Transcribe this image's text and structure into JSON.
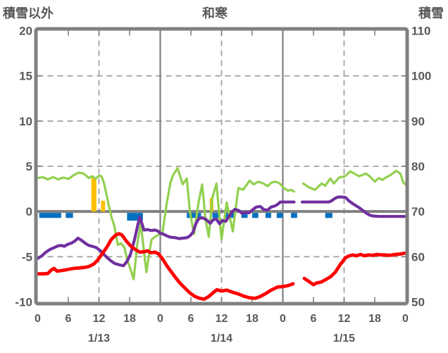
{
  "header": {
    "left_axis_title": "積雪以外",
    "chart_title": "和寒",
    "right_axis_title": "積雪"
  },
  "chart_data": {
    "type": "line",
    "title": "和寒",
    "x_axis": {
      "span_hours": 72,
      "tick_every_hours": 6,
      "hour_tick_labels": [
        "0",
        "6",
        "12",
        "18",
        "0",
        "6",
        "12",
        "18",
        "0",
        "6",
        "12",
        "18",
        "0"
      ],
      "date_labels": [
        {
          "text": "1/13",
          "at_hour": 12
        },
        {
          "text": "1/14",
          "at_hour": 36
        },
        {
          "text": "1/15",
          "at_hour": 60
        }
      ],
      "solid_gridlines_at_hours": [
        24,
        48
      ],
      "dashed_gridlines_at_hours": [
        12,
        36,
        60
      ]
    },
    "left_axis": {
      "title": "積雪以外",
      "min": -10,
      "max": 20,
      "tick_step": 5,
      "tick_labels": [
        "20",
        "15",
        "10",
        "5",
        "0",
        "-5",
        "-10"
      ],
      "dashed_gridlines_at": [
        15,
        10,
        5,
        -5
      ],
      "zero_line": true
    },
    "right_axis": {
      "title": "積雪",
      "min": 50,
      "max": 110,
      "tick_step": 10,
      "tick_labels": [
        "110",
        "100",
        "90",
        "80",
        "70",
        "60",
        "50"
      ]
    },
    "series": [
      {
        "name": "green-line",
        "color": "#92D050",
        "axis": "right",
        "points": [
          [
            0,
            3.7
          ],
          [
            1,
            3.8
          ],
          [
            2,
            3.55
          ],
          [
            3,
            3.8
          ],
          [
            4,
            3.55
          ],
          [
            5,
            3.75
          ],
          [
            6,
            3.6
          ],
          [
            7,
            4.0
          ],
          [
            8,
            4.3
          ],
          [
            9,
            4.2
          ],
          [
            10,
            3.7
          ],
          [
            10.7,
            3.9
          ],
          [
            11.3,
            3.6
          ],
          [
            12,
            3.95
          ],
          [
            12.5,
            3.9
          ],
          [
            13,
            3.1
          ],
          [
            13.5,
            1.8
          ],
          [
            14,
            0.5
          ],
          [
            14.5,
            -0.7
          ],
          [
            15,
            -1.6
          ],
          [
            15.7,
            -3.7
          ],
          [
            16.3,
            -3.5
          ],
          [
            17,
            -4.0
          ],
          [
            17.5,
            -5.3
          ],
          [
            18.3,
            -6.6
          ],
          [
            18.8,
            -7.5
          ],
          [
            19.5,
            -3.6
          ],
          [
            20.2,
            -1.3
          ],
          [
            20.8,
            -4.4
          ],
          [
            21.3,
            -6.7
          ],
          [
            21.9,
            -4.4
          ],
          [
            22.3,
            -3.1
          ],
          [
            23,
            -2.8
          ],
          [
            23.8,
            -2.5
          ],
          [
            24.4,
            -2.5
          ],
          [
            25.3,
            1.0
          ],
          [
            26,
            3.2
          ],
          [
            26.5,
            4.0
          ],
          [
            27.4,
            4.8
          ],
          [
            28.4,
            3.0
          ],
          [
            29.2,
            3.65
          ],
          [
            29.8,
            0.0
          ],
          [
            30.6,
            -2.5
          ],
          [
            31.5,
            1.0
          ],
          [
            32.2,
            3.0
          ],
          [
            32.9,
            -1.0
          ],
          [
            33.5,
            -2.8
          ],
          [
            34.2,
            1.5
          ],
          [
            35.0,
            3.1
          ],
          [
            36.0,
            -3.1
          ],
          [
            37.0,
            1.0
          ],
          [
            38.2,
            -2.2
          ],
          [
            39.3,
            2.6
          ],
          [
            40.2,
            2.4
          ],
          [
            41.5,
            3.4
          ],
          [
            42.3,
            3.0
          ],
          [
            43.2,
            3.3
          ],
          [
            44.2,
            3.1
          ],
          [
            45,
            2.8
          ],
          [
            45.8,
            3.2
          ],
          [
            46.6,
            3.3
          ],
          [
            47.4,
            3.1
          ],
          [
            48.2,
            2.6
          ],
          [
            49,
            2.3
          ],
          [
            49.6,
            2.4
          ],
          [
            50.2,
            2.2
          ],
          null,
          [
            52,
            3.1
          ],
          [
            53,
            2.7
          ],
          [
            54.3,
            2.4
          ],
          [
            55.6,
            3.1
          ],
          [
            56.3,
            2.85
          ],
          [
            57.3,
            3.65
          ],
          [
            58,
            3.1
          ],
          [
            59,
            3.75
          ],
          [
            60.2,
            3.9
          ],
          [
            61.2,
            4.45
          ],
          [
            62,
            4.2
          ],
          [
            62.9,
            3.9
          ],
          [
            64.3,
            4.2
          ],
          [
            65.2,
            3.8
          ],
          [
            66,
            3.3
          ],
          [
            66.8,
            3.7
          ],
          [
            67.5,
            3.5
          ],
          [
            68.3,
            3.8
          ],
          [
            69,
            4.0
          ],
          [
            70.2,
            4.5
          ],
          [
            71,
            4.2
          ],
          [
            71.6,
            3.2
          ],
          [
            72,
            3.0
          ]
        ]
      },
      {
        "name": "purple-line",
        "color": "#7030A0",
        "axis": "left",
        "points": [
          [
            0,
            -5.2
          ],
          [
            0.8,
            -4.9
          ],
          [
            1.6,
            -4.5
          ],
          [
            2.4,
            -4.2
          ],
          [
            3.2,
            -4.0
          ],
          [
            4,
            -3.8
          ],
          [
            4.6,
            -3.75
          ],
          [
            5.2,
            -3.85
          ],
          [
            6,
            -3.6
          ],
          [
            6.6,
            -3.5
          ],
          [
            7.2,
            -3.3
          ],
          [
            7.9,
            -2.95
          ],
          [
            8.6,
            -3.2
          ],
          [
            9.3,
            -3.5
          ],
          [
            10,
            -3.75
          ],
          [
            10.7,
            -3.85
          ],
          [
            11.5,
            -4.0
          ],
          [
            12.2,
            -4.3
          ],
          [
            12.8,
            -4.65
          ],
          [
            13.6,
            -5.1
          ],
          [
            14.3,
            -5.45
          ],
          [
            15.1,
            -5.75
          ],
          [
            16,
            -5.9
          ],
          [
            16.8,
            -6.0
          ],
          [
            17.5,
            -5.5
          ],
          [
            18.2,
            -4.7
          ],
          [
            19,
            -3.0
          ],
          [
            19.6,
            -1.5
          ],
          [
            20,
            -0.6
          ],
          [
            20.4,
            -1.3
          ],
          [
            20.8,
            -2.05
          ],
          [
            21.5,
            -2.0
          ],
          [
            22.2,
            -2.1
          ],
          [
            23,
            -2.05
          ],
          [
            23.5,
            -2.15
          ],
          [
            24,
            -2.4
          ],
          [
            24.6,
            -2.5
          ],
          [
            25.3,
            -2.7
          ],
          [
            26,
            -2.85
          ],
          [
            27,
            -2.9
          ],
          [
            27.7,
            -3.0
          ],
          [
            28.4,
            -2.95
          ],
          [
            29.2,
            -2.9
          ],
          [
            29.8,
            -2.7
          ],
          [
            30.4,
            -2.3
          ],
          [
            31,
            -1.3
          ],
          [
            31.6,
            -0.75
          ],
          [
            32.3,
            -0.7
          ],
          [
            33,
            -0.9
          ],
          [
            33.8,
            -1.3
          ],
          [
            34.4,
            -0.9
          ],
          [
            35,
            -0.85
          ],
          [
            35.6,
            -1.35
          ],
          [
            36.2,
            -1.0
          ],
          [
            36.8,
            -1.1
          ],
          [
            37.4,
            -0.6
          ],
          [
            38,
            -0.1
          ],
          [
            38.6,
            0.25
          ],
          [
            39.4,
            0.1
          ],
          [
            40,
            -0.2
          ],
          [
            40.7,
            -0.1
          ],
          [
            41.4,
            -0.15
          ],
          [
            42,
            0.15
          ],
          [
            42.8,
            0.5
          ],
          [
            43.6,
            0.55
          ],
          [
            44.3,
            0.2
          ],
          [
            45,
            0.15
          ],
          [
            45.7,
            0.5
          ],
          [
            46.4,
            0.6
          ],
          [
            47,
            0.8
          ],
          [
            47.5,
            1.05
          ],
          [
            48.5,
            1.05
          ],
          [
            49.5,
            1.05
          ],
          [
            50.2,
            1.05
          ],
          null,
          [
            51.8,
            1.05
          ],
          [
            53,
            1.05
          ],
          [
            54,
            1.05
          ],
          [
            55,
            1.05
          ],
          [
            56,
            1.05
          ],
          [
            57,
            1.05
          ],
          [
            57.6,
            1.2
          ],
          [
            58.2,
            1.45
          ],
          [
            58.8,
            1.6
          ],
          [
            59.6,
            1.6
          ],
          [
            60.3,
            1.55
          ],
          [
            60.9,
            1.2
          ],
          [
            61.6,
            0.9
          ],
          [
            62.3,
            0.65
          ],
          [
            63,
            0.4
          ],
          [
            63.7,
            0.1
          ],
          [
            64.4,
            -0.2
          ],
          [
            65,
            -0.4
          ],
          [
            65.7,
            -0.5
          ],
          [
            67,
            -0.55
          ],
          [
            68,
            -0.55
          ],
          [
            69,
            -0.55
          ],
          [
            70,
            -0.55
          ],
          [
            71,
            -0.55
          ],
          [
            72,
            -0.55
          ]
        ]
      },
      {
        "name": "red-line",
        "color": "#FF0000",
        "axis": "left",
        "points": [
          [
            0,
            -6.9
          ],
          [
            1,
            -6.9
          ],
          [
            2,
            -6.85
          ],
          [
            2.6,
            -6.5
          ],
          [
            3.2,
            -6.3
          ],
          [
            3.8,
            -6.6
          ],
          [
            5,
            -6.5
          ],
          [
            6,
            -6.4
          ],
          [
            7,
            -6.3
          ],
          [
            8,
            -6.25
          ],
          [
            9,
            -6.2
          ],
          [
            10,
            -6.1
          ],
          [
            11,
            -5.8
          ],
          [
            11.7,
            -5.4
          ],
          [
            12.6,
            -4.7
          ],
          [
            13.6,
            -3.9
          ],
          [
            14.4,
            -3.1
          ],
          [
            15.3,
            -2.6
          ],
          [
            15.9,
            -2.45
          ],
          [
            16.5,
            -2.6
          ],
          [
            17.4,
            -3.3
          ],
          [
            18.2,
            -3.8
          ],
          [
            19.1,
            -4.2
          ],
          [
            20,
            -4.5
          ],
          [
            20.8,
            -4.45
          ],
          [
            21.5,
            -4.35
          ],
          [
            22.2,
            -4.55
          ],
          [
            23,
            -4.5
          ],
          [
            23.7,
            -4.7
          ],
          [
            24.4,
            -5.2
          ],
          [
            25.3,
            -6.0
          ],
          [
            26.2,
            -6.7
          ],
          [
            27.1,
            -7.4
          ],
          [
            28,
            -8.0
          ],
          [
            28.9,
            -8.5
          ],
          [
            29.8,
            -9.0
          ],
          [
            30.8,
            -9.4
          ],
          [
            31.7,
            -9.6
          ],
          [
            32.6,
            -9.7
          ],
          [
            33.5,
            -9.4
          ],
          [
            34.3,
            -9.0
          ],
          [
            35.1,
            -8.65
          ],
          [
            36,
            -8.8
          ],
          [
            37,
            -8.7
          ],
          [
            38,
            -8.9
          ],
          [
            39.2,
            -9.1
          ],
          [
            40.3,
            -9.35
          ],
          [
            41.5,
            -9.55
          ],
          [
            42.6,
            -9.6
          ],
          [
            43.6,
            -9.4
          ],
          [
            44.6,
            -9.1
          ],
          [
            45.7,
            -8.7
          ],
          [
            47,
            -8.35
          ],
          [
            48,
            -8.3
          ],
          [
            49,
            -8.2
          ],
          [
            50,
            -8.0
          ],
          null,
          [
            52.2,
            -7.4
          ],
          [
            53,
            -7.7
          ],
          [
            54,
            -8.1
          ],
          [
            54.6,
            -7.9
          ],
          [
            55.5,
            -7.8
          ],
          [
            56.5,
            -7.5
          ],
          [
            57.4,
            -7.2
          ],
          [
            58.3,
            -6.7
          ],
          [
            59.2,
            -5.9
          ],
          [
            60.3,
            -5.1
          ],
          [
            61,
            -4.9
          ],
          [
            61.7,
            -4.8
          ],
          [
            62.4,
            -4.9
          ],
          [
            63.2,
            -4.75
          ],
          [
            64,
            -4.9
          ],
          [
            64.7,
            -4.8
          ],
          [
            65.5,
            -4.85
          ],
          [
            66.4,
            -4.75
          ],
          [
            67.2,
            -4.8
          ],
          [
            68,
            -4.8
          ],
          [
            69,
            -4.85
          ],
          [
            70,
            -4.75
          ],
          [
            71,
            -4.7
          ],
          [
            72,
            -4.6
          ]
        ]
      }
    ],
    "bars": [
      {
        "name": "orange-bars",
        "color": "#FFC000",
        "direction": "up-from-zero",
        "items": [
          {
            "start_hour": 10.5,
            "end_hour": 11.5,
            "value": 3.8
          },
          {
            "start_hour": 12.4,
            "end_hour": 13.2,
            "value": 1.2
          },
          {
            "start_hour": 33.7,
            "end_hour": 34.4,
            "value": 1.5
          }
        ]
      },
      {
        "name": "blue-bars",
        "color": "#0070C0",
        "direction": "down-from-zero",
        "items": [
          {
            "start_hour": 0.3,
            "end_hour": 4.6,
            "depth": 0.55
          },
          {
            "start_hour": 5.5,
            "end_hour": 6.9,
            "depth": 0.55
          },
          {
            "start_hour": 17.5,
            "end_hour": 20.6,
            "depth": 0.85
          },
          {
            "start_hour": 29.2,
            "end_hour": 32.0,
            "depth": 0.55
          },
          {
            "start_hour": 34.2,
            "end_hour": 35.8,
            "depth": 0.55
          },
          {
            "start_hour": 36.5,
            "end_hour": 38.4,
            "depth": 0.55
          },
          {
            "start_hour": 39.9,
            "end_hour": 41.1,
            "depth": 0.55
          },
          {
            "start_hour": 42.0,
            "end_hour": 43.2,
            "depth": 0.55
          },
          {
            "start_hour": 44.6,
            "end_hour": 45.7,
            "depth": 0.55
          },
          {
            "start_hour": 46.8,
            "end_hour": 48.0,
            "depth": 0.55
          },
          {
            "start_hour": 49.6,
            "end_hour": 50.8,
            "depth": 0.55
          },
          {
            "start_hour": 56.3,
            "end_hour": 57.7,
            "depth": 0.55
          }
        ]
      }
    ],
    "colors": {
      "frame": "#808080",
      "grid": "#A3A3A3",
      "text": "#595959",
      "background": "#FFFFFF"
    }
  }
}
